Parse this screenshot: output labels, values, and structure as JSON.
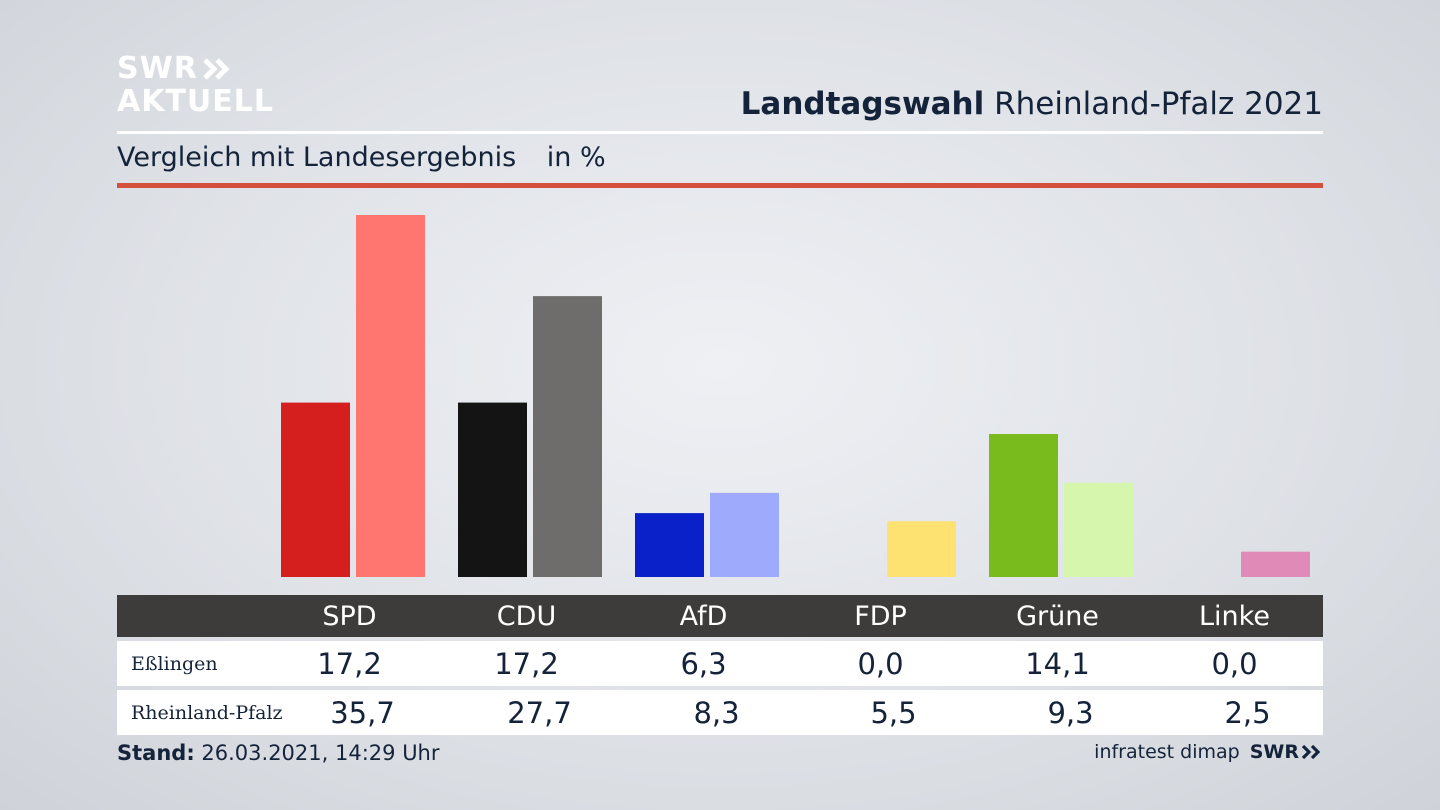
{
  "logo": {
    "line1": "SWR",
    "line2": "AKTUELL"
  },
  "header": {
    "title_bold": "Landtagswahl",
    "title_rest": "Rheinland-Pfalz 2021"
  },
  "subheader": {
    "text": "Vergleich mit Landesergebnis",
    "unit": "in %"
  },
  "colors": {
    "accent_rule": "#d4503c",
    "table_header": "#3d3c3b"
  },
  "chart_data": {
    "type": "bar",
    "title": "Vergleich mit Landesergebnis",
    "ylabel": "in %",
    "ylim": [
      0,
      35.7
    ],
    "categories": [
      "SPD",
      "CDU",
      "AfD",
      "FDP",
      "Grüne",
      "Linke"
    ],
    "series": [
      {
        "name": "Eßlingen",
        "values": [
          17.2,
          17.2,
          6.3,
          0.0,
          14.1,
          0.0
        ],
        "colors": [
          "#d51f1f",
          "#141414",
          "#0a21c9",
          "#fde271",
          "#79bb1c",
          "#e08ab8"
        ]
      },
      {
        "name": "Rheinland-Pfalz",
        "values": [
          35.7,
          27.7,
          8.3,
          5.5,
          9.3,
          2.5
        ],
        "colors": [
          "#ff7570",
          "#6f6d6b",
          "#9eaafc",
          "#fde271",
          "#d6f6ad",
          "#e08ab8"
        ]
      }
    ],
    "grid": false,
    "legend": "none"
  },
  "table": {
    "columns": [
      "SPD",
      "CDU",
      "AfD",
      "FDP",
      "Grüne",
      "Linke"
    ],
    "rows": [
      {
        "label": "Eßlingen",
        "values": [
          "17,2",
          "17,2",
          "6,3",
          "0,0",
          "14,1",
          "0,0"
        ]
      },
      {
        "label": "Rheinland-Pfalz",
        "values": [
          "35,7",
          "27,7",
          "8,3",
          "5,5",
          "9,3",
          "2,5"
        ]
      }
    ]
  },
  "footer": {
    "stand_label": "Stand:",
    "stand_value": "26.03.2021, 14:29 Uhr",
    "source": "infratest dimap",
    "brand": "SWR"
  }
}
